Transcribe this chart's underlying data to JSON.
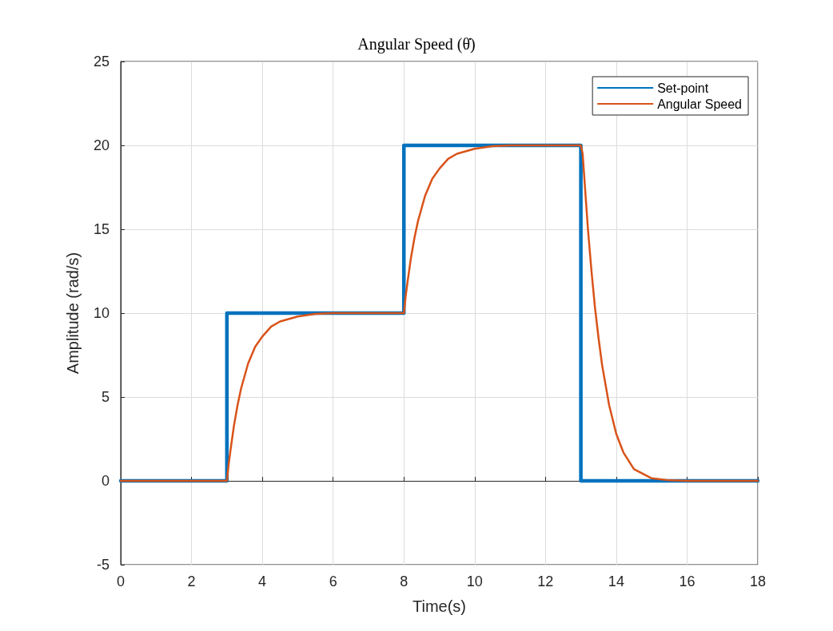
{
  "chart_data": {
    "type": "line",
    "title": "Angular Speed (θ̇)",
    "xlabel": "Time(s)",
    "ylabel": "Amplitude (rad/s)",
    "xlim": [
      0,
      18
    ],
    "xticks": [
      0,
      2,
      4,
      6,
      8,
      10,
      12,
      14,
      16,
      18
    ],
    "ylim": [
      -5,
      25
    ],
    "yticks": [
      -5,
      0,
      5,
      10,
      15,
      20,
      25
    ],
    "grid": true,
    "legend": "top right",
    "marker": "none",
    "line_style": "solid",
    "series": [
      {
        "name": "Set-point",
        "color": "#0072bd",
        "x": [
          0,
          3,
          3,
          8,
          8,
          13,
          13,
          18
        ],
        "values": [
          0,
          0,
          10,
          10,
          20,
          20,
          0,
          0
        ]
      },
      {
        "name": "Angular Speed",
        "color": "#d95319",
        "x": [
          0,
          3,
          3.05,
          3.1,
          3.2,
          3.3,
          3.4,
          3.6,
          3.8,
          4,
          4.25,
          4.5,
          5,
          5.5,
          6,
          8,
          8.05,
          8.1,
          8.2,
          8.3,
          8.4,
          8.6,
          8.8,
          9,
          9.25,
          9.5,
          10,
          10.5,
          11,
          13,
          13.05,
          13.1,
          13.2,
          13.3,
          13.4,
          13.5,
          13.6,
          13.8,
          14,
          14.2,
          14.5,
          15,
          15.5,
          16,
          18
        ],
        "values": [
          0,
          0,
          1,
          1.8,
          3.3,
          4.5,
          5.5,
          7,
          8,
          8.6,
          9.2,
          9.5,
          9.8,
          9.95,
          10,
          10,
          11,
          11.8,
          13.3,
          14.5,
          15.5,
          17,
          18,
          18.6,
          19.2,
          19.5,
          19.8,
          19.95,
          20,
          20,
          19.5,
          18,
          15,
          12.5,
          10.3,
          8.5,
          6.9,
          4.5,
          2.8,
          1.7,
          0.7,
          0.15,
          0.03,
          0,
          0
        ]
      }
    ]
  }
}
